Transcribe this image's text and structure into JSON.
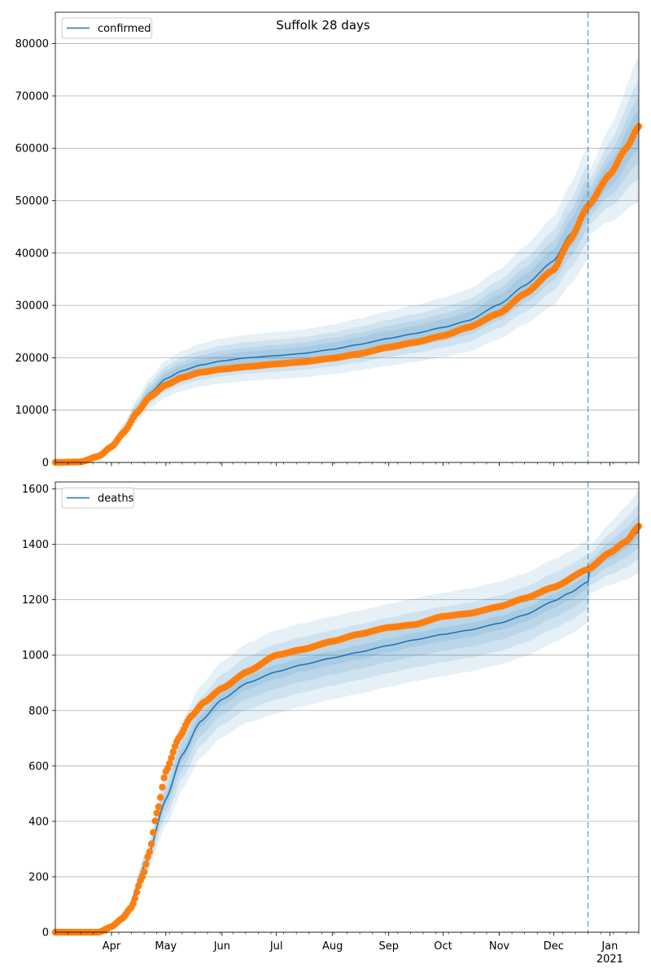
{
  "title": "Suffolk 28 days",
  "colors": {
    "model": "#1f77b4",
    "observed": "#ff7f0e",
    "band": "#1f77b4",
    "grid": "#b0b0b0",
    "vline": "#1f77b4"
  },
  "chart_data": [
    {
      "type": "line",
      "panel": "top",
      "series": [
        {
          "name": "confirmed",
          "kind": "model-line"
        },
        {
          "name": "",
          "kind": "observed-points"
        }
      ],
      "ylim": [
        0,
        86000
      ],
      "yticks": [
        "0",
        "10000",
        "20000",
        "30000",
        "40000",
        "50000",
        "60000",
        "70000",
        "80000"
      ],
      "ytick_values": [
        0,
        10000,
        20000,
        30000,
        40000,
        50000,
        60000,
        70000,
        80000
      ],
      "x_start": "2020-03-01",
      "x_end": "2021-01-17",
      "forecast_start": "2020-12-20",
      "grid": "horizontal",
      "legend_position": "top-left",
      "model_knots": [
        [
          "2020-03-01",
          0
        ],
        [
          "2020-03-15",
          150
        ],
        [
          "2020-03-25",
          1500
        ],
        [
          "2020-04-01",
          3200
        ],
        [
          "2020-04-08",
          6200
        ],
        [
          "2020-04-15",
          10000
        ],
        [
          "2020-04-22",
          13200
        ],
        [
          "2020-05-01",
          16000
        ],
        [
          "2020-05-10",
          17500
        ],
        [
          "2020-05-20",
          18600
        ],
        [
          "2020-06-01",
          19400
        ],
        [
          "2020-06-15",
          20000
        ],
        [
          "2020-07-01",
          20400
        ],
        [
          "2020-07-15",
          20800
        ],
        [
          "2020-08-01",
          21600
        ],
        [
          "2020-08-15",
          22500
        ],
        [
          "2020-09-01",
          23700
        ],
        [
          "2020-09-15",
          24600
        ],
        [
          "2020-10-01",
          25800
        ],
        [
          "2020-10-15",
          27100
        ],
        [
          "2020-11-01",
          30200
        ],
        [
          "2020-11-15",
          33800
        ],
        [
          "2020-12-01",
          38500
        ],
        [
          "2020-12-10",
          43500
        ],
        [
          "2020-12-20",
          49500
        ],
        [
          "2021-01-01",
          55000
        ],
        [
          "2021-01-17",
          63500
        ]
      ],
      "observed_knots": [
        [
          "2020-03-01",
          0
        ],
        [
          "2020-03-15",
          100
        ],
        [
          "2020-03-25",
          1200
        ],
        [
          "2020-04-01",
          3000
        ],
        [
          "2020-04-08",
          5800
        ],
        [
          "2020-04-15",
          9500
        ],
        [
          "2020-04-22",
          12500
        ],
        [
          "2020-05-01",
          14800
        ],
        [
          "2020-05-10",
          16200
        ],
        [
          "2020-05-20",
          17200
        ],
        [
          "2020-06-01",
          17800
        ],
        [
          "2020-06-15",
          18300
        ],
        [
          "2020-07-01",
          18800
        ],
        [
          "2020-07-15",
          19200
        ],
        [
          "2020-08-01",
          19900
        ],
        [
          "2020-08-15",
          20700
        ],
        [
          "2020-09-01",
          22000
        ],
        [
          "2020-09-15",
          22900
        ],
        [
          "2020-10-01",
          24200
        ],
        [
          "2020-10-15",
          25800
        ],
        [
          "2020-11-01",
          28500
        ],
        [
          "2020-11-15",
          32200
        ],
        [
          "2020-12-01",
          36800
        ],
        [
          "2020-12-10",
          42500
        ],
        [
          "2020-12-20",
          49000
        ],
        [
          "2021-01-01",
          55000
        ],
        [
          "2021-01-10",
          60000
        ],
        [
          "2021-01-17",
          64200
        ]
      ],
      "band_half_widths_pct": [
        6,
        10,
        15,
        22
      ]
    },
    {
      "type": "line",
      "panel": "bottom",
      "series": [
        {
          "name": "deaths",
          "kind": "model-line"
        },
        {
          "name": "",
          "kind": "observed-points"
        }
      ],
      "ylim": [
        0,
        1625
      ],
      "yticks": [
        "0",
        "200",
        "400",
        "600",
        "800",
        "1000",
        "1200",
        "1400",
        "1600"
      ],
      "ytick_values": [
        0,
        200,
        400,
        600,
        800,
        1000,
        1200,
        1400,
        1600
      ],
      "x_start": "2020-03-01",
      "x_end": "2021-01-17",
      "forecast_start": "2020-12-20",
      "grid": "horizontal",
      "legend_position": "top-left",
      "xtick_labels": [
        "Apr",
        "May",
        "Jun",
        "Jul",
        "Aug",
        "Sep",
        "Oct",
        "Nov",
        "Dec",
        "Jan"
      ],
      "xtick_dates": [
        "2020-04-01",
        "2020-05-01",
        "2020-06-01",
        "2020-07-01",
        "2020-08-01",
        "2020-09-01",
        "2020-10-01",
        "2020-11-01",
        "2020-12-01",
        "2021-01-01"
      ],
      "year_label": "2021",
      "model_knots": [
        [
          "2020-03-01",
          0
        ],
        [
          "2020-03-20",
          0
        ],
        [
          "2020-04-01",
          20
        ],
        [
          "2020-04-10",
          80
        ],
        [
          "2020-04-20",
          250
        ],
        [
          "2020-05-01",
          480
        ],
        [
          "2020-05-10",
          640
        ],
        [
          "2020-05-20",
          760
        ],
        [
          "2020-06-01",
          840
        ],
        [
          "2020-06-15",
          900
        ],
        [
          "2020-07-01",
          940
        ],
        [
          "2020-07-15",
          965
        ],
        [
          "2020-08-01",
          990
        ],
        [
          "2020-08-15",
          1010
        ],
        [
          "2020-09-01",
          1035
        ],
        [
          "2020-09-15",
          1055
        ],
        [
          "2020-10-01",
          1075
        ],
        [
          "2020-10-15",
          1090
        ],
        [
          "2020-11-01",
          1115
        ],
        [
          "2020-11-15",
          1145
        ],
        [
          "2020-12-01",
          1195
        ],
        [
          "2020-12-10",
          1225
        ],
        [
          "2020-12-20",
          1265
        ],
        [
          "2020-12-21",
          1310
        ],
        [
          "2021-01-01",
          1365
        ],
        [
          "2021-01-10",
          1405
        ],
        [
          "2021-01-17",
          1445
        ]
      ],
      "observed_knots": [
        [
          "2020-03-01",
          0
        ],
        [
          "2020-03-25",
          0
        ],
        [
          "2020-04-01",
          20
        ],
        [
          "2020-04-07",
          50
        ],
        [
          "2020-04-12",
          90
        ],
        [
          "2020-04-18",
          200
        ],
        [
          "2020-04-22",
          290
        ],
        [
          "2020-04-26",
          430
        ],
        [
          "2020-05-01",
          580
        ],
        [
          "2020-05-08",
          700
        ],
        [
          "2020-05-15",
          780
        ],
        [
          "2020-05-22",
          830
        ],
        [
          "2020-06-01",
          880
        ],
        [
          "2020-06-15",
          940
        ],
        [
          "2020-07-01",
          1000
        ],
        [
          "2020-07-15",
          1020
        ],
        [
          "2020-08-01",
          1050
        ],
        [
          "2020-08-15",
          1075
        ],
        [
          "2020-09-01",
          1100
        ],
        [
          "2020-09-15",
          1110
        ],
        [
          "2020-10-01",
          1140
        ],
        [
          "2020-10-15",
          1150
        ],
        [
          "2020-11-01",
          1175
        ],
        [
          "2020-11-15",
          1205
        ],
        [
          "2020-12-01",
          1245
        ],
        [
          "2020-12-20",
          1310
        ],
        [
          "2021-01-01",
          1370
        ],
        [
          "2021-01-10",
          1410
        ],
        [
          "2021-01-17",
          1465
        ]
      ],
      "band_half_widths_abs": [
        25,
        60,
        100,
        150
      ]
    }
  ]
}
